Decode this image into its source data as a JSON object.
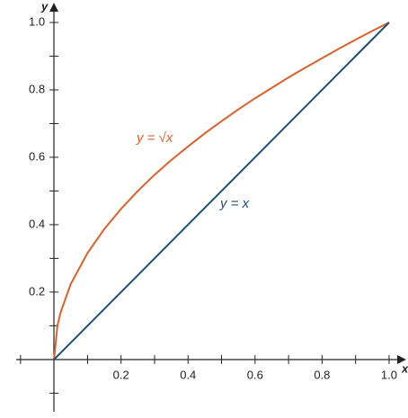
{
  "chart_data": {
    "type": "line",
    "x_label": "x",
    "y_label": "y",
    "x": [
      0,
      0.01,
      0.02,
      0.05,
      0.1,
      0.15,
      0.2,
      0.25,
      0.3,
      0.35,
      0.4,
      0.45,
      0.5,
      0.55,
      0.6,
      0.65,
      0.7,
      0.75,
      0.8,
      0.85,
      0.9,
      0.95,
      1
    ],
    "series": [
      {
        "name": "y = √x",
        "color": "#d9622b",
        "values": [
          0,
          0.1,
          0.141,
          0.224,
          0.316,
          0.387,
          0.447,
          0.5,
          0.548,
          0.592,
          0.632,
          0.671,
          0.707,
          0.742,
          0.775,
          0.806,
          0.837,
          0.866,
          0.894,
          0.922,
          0.949,
          0.975,
          1
        ]
      },
      {
        "name": "y = x",
        "color": "#1f4e79",
        "values": [
          0,
          0.01,
          0.02,
          0.05,
          0.1,
          0.15,
          0.2,
          0.25,
          0.3,
          0.35,
          0.4,
          0.45,
          0.5,
          0.55,
          0.6,
          0.65,
          0.7,
          0.75,
          0.8,
          0.85,
          0.9,
          0.95,
          1
        ]
      }
    ],
    "xlim": [
      -0.113,
      1.035
    ],
    "ylim": [
      -0.155,
      1.04
    ],
    "xticks": [
      0.2,
      0.4,
      0.6,
      0.8,
      {
        "value": 1,
        "label": "1.0"
      }
    ],
    "yticks": [
      0.2,
      0.4,
      0.6,
      0.8,
      {
        "value": 1,
        "label": "1.0"
      }
    ],
    "minor_ticks": [
      -0.1,
      0.1,
      0.3,
      0.5,
      0.7,
      0.9
    ]
  }
}
